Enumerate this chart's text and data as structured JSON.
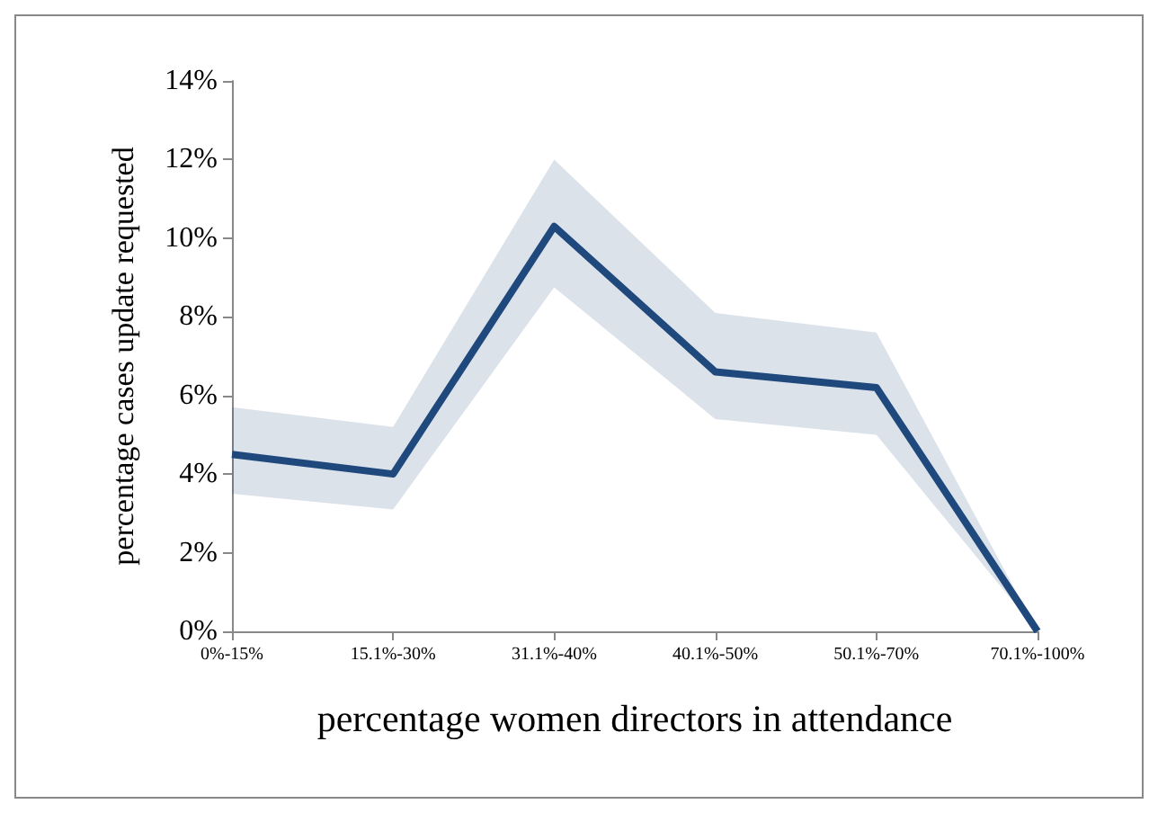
{
  "chart_data": {
    "type": "line",
    "xlabel": "percentage women directors in attendance",
    "ylabel": "percentage cases update requested",
    "categories": [
      "0%-15%",
      "15.1%-30%",
      "31.1%-40%",
      "40.1%-50%",
      "50.1%-70%",
      "70.1%-100%"
    ],
    "series": [
      {
        "color": "#1f497d",
        "values": [
          4.5,
          4.0,
          10.3,
          6.6,
          6.2,
          0
        ],
        "lower": [
          3.5,
          3.1,
          8.75,
          5.4,
          5.0,
          0
        ],
        "upper": [
          5.7,
          5.2,
          12.0,
          8.1,
          7.6,
          0
        ]
      }
    ],
    "ylim": [
      0,
      14
    ],
    "yticks": [
      {
        "value": 0,
        "label": "0%"
      },
      {
        "value": 2,
        "label": "2%"
      },
      {
        "value": 4,
        "label": "4%"
      },
      {
        "value": 6,
        "label": "6%"
      },
      {
        "value": 8,
        "label": "8%"
      },
      {
        "value": 10,
        "label": "10%"
      },
      {
        "value": 12,
        "label": "12%"
      },
      {
        "value": 14,
        "label": "14%"
      }
    ],
    "marker": "none",
    "line_style": "solid"
  }
}
